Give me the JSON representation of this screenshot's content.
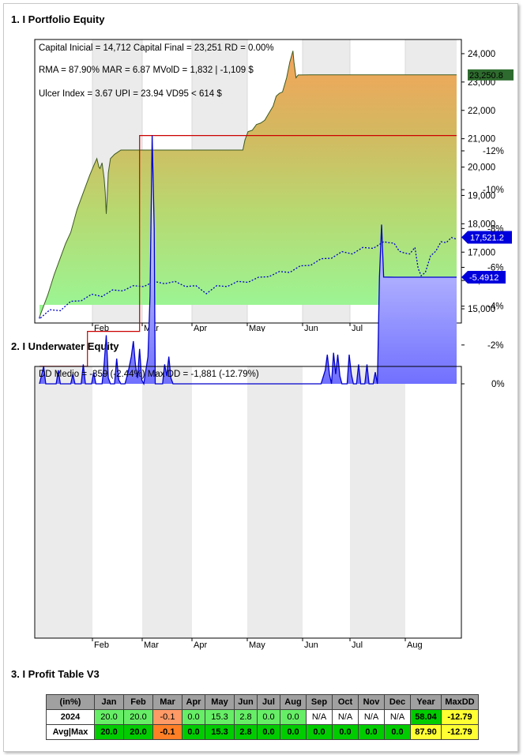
{
  "sections": {
    "equity_title": "1. I Portfolio Equity",
    "underwater_title": "2. I Underwater Equity",
    "profit_title": "3. I Profit Table V3"
  },
  "equity_stats": {
    "line1": "Capital Inicial = 14,712  Capital Final = 23,251   RD = 0.00%",
    "line2": "RMA = 87.90%   MAR = 6.87   MVolD = 1,832 | -1,109 $",
    "line3": "Ulcer Index = 3.67   UPI = 23.94   VD95 < 614 $"
  },
  "underwater_stats": {
    "line1": "DD Medio = -359 (-2.44%)      Max DD = -1,881 (-12.79%)"
  },
  "chart_data": [
    {
      "type": "area",
      "x_ticks": [
        "Feb",
        "Mar",
        "Apr",
        "May",
        "Jun",
        "Jul",
        "Aug"
      ],
      "y_ticks": [
        "15,000",
        "16,000",
        "17,000",
        "18,000",
        "19,000",
        "20,000",
        "21,000",
        "22,000",
        "23,000",
        "24,000"
      ],
      "ylim": [
        14500,
        24500
      ],
      "series": [
        {
          "values": [
            [
              0,
              14712
            ],
            [
              8,
              15500
            ],
            [
              14,
              16200
            ],
            [
              20,
              16800
            ],
            [
              25,
              17300
            ],
            [
              30,
              17700
            ],
            [
              36,
              18500
            ],
            [
              42,
              19100
            ],
            [
              48,
              19700
            ],
            [
              52,
              20050
            ],
            [
              55,
              20300
            ],
            [
              57,
              20000
            ],
            [
              58,
              19950
            ],
            [
              60,
              20150
            ],
            [
              62,
              19600
            ],
            [
              63,
              19100
            ],
            [
              64,
              18350
            ],
            [
              65,
              19000
            ],
            [
              66,
              19800
            ],
            [
              68,
              20300
            ],
            [
              72,
              20450
            ],
            [
              76,
              20550
            ],
            [
              78,
              20600
            ],
            [
              100,
              20600
            ],
            [
              130,
              20600
            ],
            [
              160,
              20600
            ],
            [
              185,
              20600
            ],
            [
              195,
              20600
            ],
            [
              197,
              20950
            ],
            [
              200,
              21250
            ],
            [
              204,
              21300
            ],
            [
              208,
              21500
            ],
            [
              212,
              21550
            ],
            [
              216,
              21650
            ],
            [
              220,
              21900
            ],
            [
              224,
              22150
            ],
            [
              227,
              22500
            ],
            [
              230,
              22600
            ],
            [
              233,
              22650
            ],
            [
              237,
              23150
            ],
            [
              240,
              23700
            ],
            [
              243,
              24100
            ],
            [
              244,
              23700
            ],
            [
              246,
              23150
            ],
            [
              248,
              23250
            ],
            [
              260,
              23251
            ],
            [
              300,
              23251
            ],
            [
              380,
              23251
            ],
            [
              400,
              23251
            ]
          ],
          "final_label": "23,250.8",
          "color": "#2e7d32"
        },
        {
          "values": [
            [
              0,
              14712
            ],
            [
              10,
              14900
            ],
            [
              20,
              15000
            ],
            [
              30,
              15200
            ],
            [
              40,
              15350
            ],
            [
              50,
              15450
            ],
            [
              60,
              15500
            ],
            [
              70,
              15600
            ],
            [
              80,
              15700
            ],
            [
              90,
              15750
            ],
            [
              100,
              15850
            ],
            [
              110,
              15900
            ],
            [
              120,
              15950
            ],
            [
              130,
              15900
            ],
            [
              140,
              15850
            ],
            [
              150,
              15750
            ],
            [
              160,
              15600
            ],
            [
              170,
              15750
            ],
            [
              180,
              15850
            ],
            [
              190,
              15900
            ],
            [
              200,
              16000
            ],
            [
              210,
              16050
            ],
            [
              220,
              16200
            ],
            [
              230,
              16250
            ],
            [
              240,
              16350
            ],
            [
              250,
              16450
            ],
            [
              260,
              16600
            ],
            [
              270,
              16700
            ],
            [
              280,
              16850
            ],
            [
              290,
              16950
            ],
            [
              300,
              17000
            ],
            [
              310,
              17100
            ],
            [
              320,
              17200
            ],
            [
              330,
              17300
            ],
            [
              335,
              17400
            ],
            [
              340,
              17250
            ],
            [
              345,
              17100
            ],
            [
              350,
              16900
            ],
            [
              355,
              17000
            ],
            [
              360,
              17100
            ],
            [
              363,
              16500
            ],
            [
              366,
              16100
            ],
            [
              370,
              16350
            ],
            [
              375,
              16800
            ],
            [
              380,
              17100
            ],
            [
              385,
              17300
            ],
            [
              390,
              17400
            ],
            [
              395,
              17450
            ],
            [
              400,
              17521
            ]
          ],
          "final_label": "17,521.2",
          "color": "#0000cc"
        }
      ]
    },
    {
      "type": "area",
      "x_ticks": [
        "Feb",
        "Mar",
        "Apr",
        "May",
        "Jun",
        "Jul",
        "Aug"
      ],
      "y_ticks": [
        "0%",
        "-2%",
        "-4%",
        "-6%",
        "-8%",
        "-10%",
        "-12%"
      ],
      "ylim": [
        -13.5,
        0.5
      ],
      "series": [
        {
          "values": [
            [
              0,
              0
            ],
            [
              4,
              -0.9
            ],
            [
              6,
              0
            ],
            [
              16,
              0
            ],
            [
              18,
              -0.7
            ],
            [
              20,
              0
            ],
            [
              30,
              0
            ],
            [
              32,
              -0.5
            ],
            [
              34,
              0
            ],
            [
              40,
              0
            ],
            [
              42,
              -1.0
            ],
            [
              44,
              0
            ],
            [
              50,
              0
            ],
            [
              52,
              -0.6
            ],
            [
              54,
              0
            ],
            [
              60,
              0
            ],
            [
              62,
              -1.0
            ],
            [
              64,
              -2.5
            ],
            [
              66,
              -0.3
            ],
            [
              68,
              0
            ],
            [
              72,
              0
            ],
            [
              74,
              -1.3
            ],
            [
              76,
              -0.2
            ],
            [
              78,
              0
            ],
            [
              82,
              0
            ],
            [
              85,
              -0.6
            ],
            [
              88,
              -1.4
            ],
            [
              90,
              -2.2
            ],
            [
              92,
              -1.0
            ],
            [
              94,
              -0.3
            ],
            [
              96,
              -1.8
            ],
            [
              98,
              -0.2
            ],
            [
              100,
              0
            ],
            [
              104,
              -1.4
            ],
            [
              106,
              -4.5
            ],
            [
              108,
              -12.79
            ],
            [
              110,
              -8
            ],
            [
              111,
              0
            ],
            [
              118,
              0
            ],
            [
              120,
              -1.0
            ],
            [
              122,
              -0.4
            ],
            [
              124,
              -1.4
            ],
            [
              126,
              -0.3
            ],
            [
              128,
              0
            ],
            [
              270,
              0
            ],
            [
              274,
              -0.7
            ],
            [
              276,
              -1.5
            ],
            [
              278,
              -0.5
            ],
            [
              280,
              0
            ],
            [
              282,
              -1.6
            ],
            [
              284,
              -0.5
            ],
            [
              286,
              -1.5
            ],
            [
              288,
              -0.4
            ],
            [
              290,
              0
            ],
            [
              295,
              0
            ],
            [
              297,
              -1.5
            ],
            [
              299,
              -0.5
            ],
            [
              301,
              0
            ],
            [
              304,
              0
            ],
            [
              306,
              -1.0
            ],
            [
              308,
              0
            ],
            [
              312,
              0
            ],
            [
              314,
              -1.0
            ],
            [
              316,
              0
            ],
            [
              320,
              0
            ],
            [
              322,
              -0.6
            ],
            [
              324,
              0
            ],
            [
              326,
              -5.5
            ],
            [
              328,
              -8.2
            ],
            [
              330,
              -5.5
            ],
            [
              340,
              -5.4912
            ],
            [
              400,
              -5.4912
            ]
          ],
          "final_label": "-5.4912",
          "color": "#0000cc"
        },
        {
          "values": [
            [
              0,
              -0.9
            ],
            [
              46,
              -0.9
            ],
            [
              46,
              -2.7
            ],
            [
              96,
              -2.7
            ],
            [
              96,
              -12.79
            ],
            [
              400,
              -12.79
            ]
          ],
          "color": "#cc0000"
        }
      ]
    }
  ],
  "profit_table": {
    "headers": [
      "(in%)",
      "Jan",
      "Feb",
      "Mar",
      "Apr",
      "May",
      "Jun",
      "Jul",
      "Aug",
      "Sep",
      "Oct",
      "Nov",
      "Dec",
      "Year",
      "MaxDD"
    ],
    "rows": [
      [
        "2024",
        "20.0",
        "20.0",
        "-0.1",
        "0.0",
        "15.3",
        "2.8",
        "0.0",
        "0.0",
        "N/A",
        "N/A",
        "N/A",
        "N/A",
        "58.04",
        "-12.79"
      ],
      [
        "Avg|Max",
        "20.0",
        "20.0",
        "-0.1",
        "0.0",
        "15.3",
        "2.8",
        "0.0",
        "0.0",
        "0.0",
        "0.0",
        "0.0",
        "0.0",
        "87.90",
        "-12.79"
      ]
    ]
  }
}
